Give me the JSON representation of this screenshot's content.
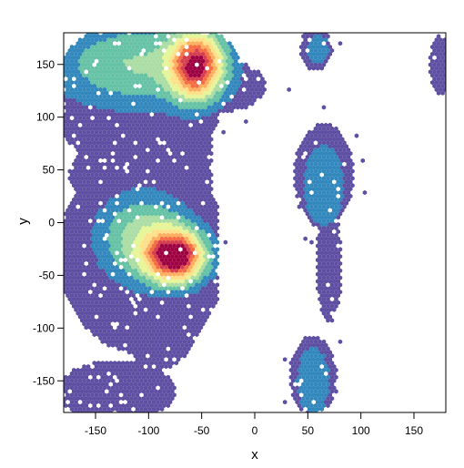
{
  "chart_data": {
    "type": "heatmap",
    "subtype": "hexbin density (Ramachandran-style)",
    "xlabel": "x",
    "ylabel": "y",
    "xlim": [
      -180,
      180
    ],
    "ylim": [
      -180,
      180
    ],
    "x_ticks": [
      -150,
      -100,
      -50,
      0,
      50,
      100,
      150
    ],
    "y_ticks": [
      -150,
      -100,
      -50,
      0,
      50,
      100,
      150
    ],
    "grid": false,
    "legend": "none",
    "color_scale": [
      "#5e4fa2",
      "#3288bd",
      "#66c2a5",
      "#abdda4",
      "#e6f598",
      "#fee08b",
      "#fdae61",
      "#f46d43",
      "#d53e4f",
      "#9e0142"
    ],
    "regions": [
      {
        "x": -110,
        "y": 150,
        "sx": 55,
        "sy": 28,
        "density": 0.25
      },
      {
        "x": -55,
        "y": 148,
        "sx": 16,
        "sy": 20,
        "density": 0.85
      },
      {
        "x": -75,
        "y": -32,
        "sx": 18,
        "sy": 16,
        "density": 1.0
      },
      {
        "x": -105,
        "y": -15,
        "sx": 28,
        "sy": 28,
        "density": 0.3
      },
      {
        "x": 65,
        "y": 35,
        "sx": 15,
        "sy": 30,
        "density": 0.15
      },
      {
        "x": 55,
        "y": -150,
        "sx": 12,
        "sy": 25,
        "density": 0.15
      },
      {
        "x": 60,
        "y": 165,
        "sx": 10,
        "sy": 15,
        "density": 0.1
      }
    ]
  }
}
